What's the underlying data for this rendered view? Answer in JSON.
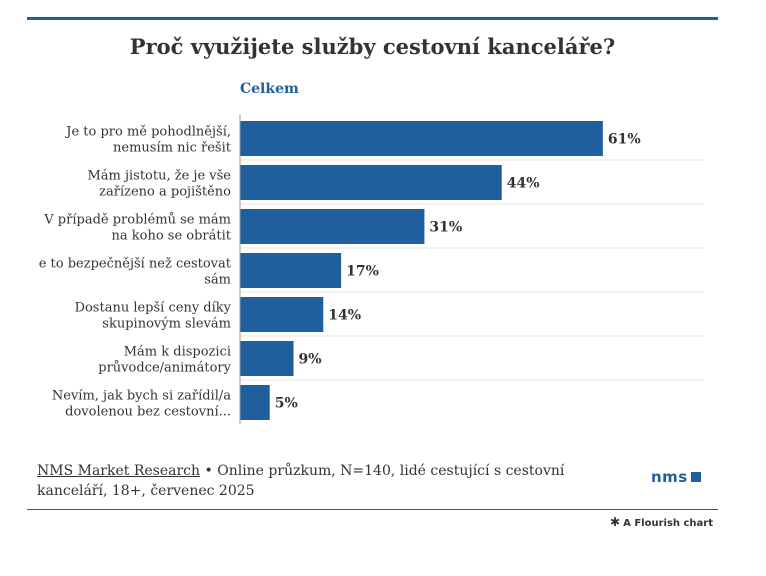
{
  "title": "Proč využijete služby cestovní kanceláře?",
  "subtitle": "Celkem",
  "colors": {
    "accent": "#1f5f9e",
    "bar": "#1f5f9e",
    "text": "#333333",
    "grid": "#e6e6e6"
  },
  "chart_data": {
    "type": "bar",
    "orientation": "horizontal",
    "title": "Proč využijete služby cestovní kanceláře?",
    "subtitle": "Celkem",
    "categories": [
      [
        "Je to pro mě pohodlnější,",
        "nemusím nic řešit"
      ],
      [
        "Mám jistotu, že je vše",
        "zařízeno a pojištěno"
      ],
      [
        "V případě problémů se mám",
        "na koho se obrátit"
      ],
      [
        "e to bezpečnější než cestovat",
        "sám"
      ],
      [
        "Dostanu lepší ceny díky",
        "skupinovým slevám"
      ],
      [
        "Mám k dispozici",
        "průvodce/animátory"
      ],
      [
        "Nevím, jak bych si zařídil/a",
        "dovolenou bez cestovní..."
      ]
    ],
    "values": [
      61,
      44,
      31,
      17,
      14,
      9,
      5
    ],
    "value_labels": [
      "61%",
      "44%",
      "31%",
      "17%",
      "14%",
      "9%",
      "5%"
    ],
    "xlim": [
      0,
      78
    ],
    "grid": true,
    "legend": "none"
  },
  "source": {
    "link_text": "NMS Market Research",
    "separator": "•",
    "text": "Online průzkum, N=140, lidé cestující s cestovní kanceláří, 18+, červenec 2025"
  },
  "logo": {
    "text": "nms"
  },
  "footer": {
    "icon": "flourish-asterisk-icon",
    "text": "A Flourish chart"
  }
}
